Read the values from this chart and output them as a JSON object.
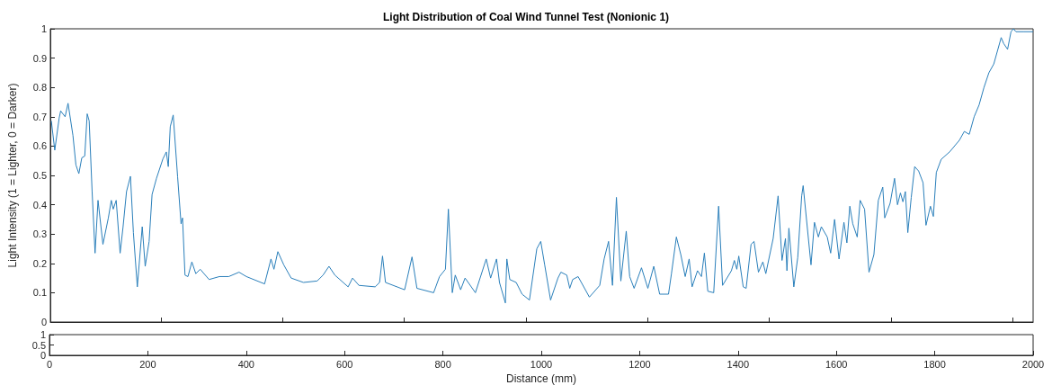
{
  "chart_data": [
    {
      "type": "line",
      "title": "Light Distribution of Coal Wind Tunnel Test (Nonionic 1)",
      "ylabel": "Light Intensity (1 = Lighter, 0 = Darker)",
      "tick_labels": "y",
      "grid": false,
      "xlim": [
        0,
        2000
      ],
      "xticks": [
        {
          "value": 225,
          "label": null
        },
        {
          "value": 473,
          "label": null
        },
        {
          "value": 720,
          "label": null
        },
        {
          "value": 968,
          "label": null
        },
        {
          "value": 1216,
          "label": null
        },
        {
          "value": 1463,
          "label": null
        },
        {
          "value": 1711,
          "label": null
        },
        {
          "value": 1958,
          "label": null
        }
      ],
      "ylim": [
        0,
        1
      ],
      "yticks": [
        0,
        0.1,
        0.2,
        0.3,
        0.4,
        0.5,
        0.6,
        0.7,
        0.8,
        0.9,
        1
      ],
      "series": [
        {
          "color": "#2a7fba",
          "x": [
            2,
            9,
            18,
            21,
            30,
            36,
            46,
            52,
            58,
            64,
            70,
            75,
            79,
            85,
            91,
            97,
            107,
            118,
            124,
            128,
            134,
            142,
            148,
            155,
            163,
            169,
            177,
            187,
            193,
            201,
            207,
            216,
            229,
            236,
            240,
            244,
            250,
            259,
            266,
            269,
            274,
            280,
            288,
            296,
            305,
            323,
            344,
            363,
            384,
            399,
            436,
            449,
            455,
            463,
            475,
            490,
            515,
            543,
            555,
            567,
            579,
            606,
            615,
            628,
            661,
            670,
            676,
            682,
            721,
            736,
            746,
            780,
            792,
            804,
            810,
            818,
            824,
            835,
            844,
            865,
            887,
            896,
            908,
            914,
            926,
            929,
            935,
            948,
            960,
            975,
            990,
            998,
            1006,
            1018,
            1033,
            1039,
            1051,
            1057,
            1063,
            1074,
            1097,
            1118,
            1127,
            1136,
            1144,
            1152,
            1161,
            1172,
            1179,
            1188,
            1203,
            1216,
            1228,
            1240,
            1258,
            1264,
            1274,
            1283,
            1292,
            1300,
            1306,
            1317,
            1325,
            1331,
            1338,
            1350,
            1360,
            1368,
            1386,
            1392,
            1397,
            1401,
            1410,
            1416,
            1426,
            1432,
            1441,
            1450,
            1456,
            1471,
            1481,
            1489,
            1496,
            1499,
            1503,
            1513,
            1521,
            1529,
            1532,
            1548,
            1555,
            1563,
            1569,
            1581,
            1588,
            1596,
            1605,
            1615,
            1621,
            1627,
            1633,
            1642,
            1648,
            1657,
            1666,
            1676,
            1685,
            1694,
            1698,
            1709,
            1718,
            1724,
            1730,
            1735,
            1740,
            1745,
            1752,
            1759,
            1767,
            1776,
            1782,
            1791,
            1797,
            1803,
            1813,
            1830,
            1850,
            1860,
            1870,
            1880,
            1890,
            1900,
            1910,
            1920,
            1935,
            1940,
            1948,
            1955,
            1960,
            1965,
            1980,
            2000
          ],
          "values": [
            0.686,
            0.586,
            0.696,
            0.72,
            0.7,
            0.746,
            0.636,
            0.536,
            0.506,
            0.56,
            0.566,
            0.71,
            0.686,
            0.445,
            0.235,
            0.415,
            0.265,
            0.355,
            0.415,
            0.385,
            0.415,
            0.235,
            0.325,
            0.445,
            0.497,
            0.305,
            0.12,
            0.325,
            0.19,
            0.275,
            0.435,
            0.49,
            0.556,
            0.58,
            0.53,
            0.666,
            0.706,
            0.495,
            0.335,
            0.355,
            0.16,
            0.155,
            0.205,
            0.165,
            0.18,
            0.145,
            0.155,
            0.155,
            0.17,
            0.155,
            0.13,
            0.215,
            0.18,
            0.24,
            0.195,
            0.15,
            0.135,
            0.14,
            0.16,
            0.19,
            0.16,
            0.12,
            0.15,
            0.125,
            0.12,
            0.135,
            0.225,
            0.135,
            0.11,
            0.222,
            0.115,
            0.1,
            0.155,
            0.18,
            0.385,
            0.1,
            0.16,
            0.11,
            0.15,
            0.1,
            0.215,
            0.15,
            0.215,
            0.135,
            0.065,
            0.215,
            0.145,
            0.135,
            0.095,
            0.075,
            0.25,
            0.275,
            0.195,
            0.075,
            0.15,
            0.17,
            0.16,
            0.115,
            0.145,
            0.155,
            0.085,
            0.125,
            0.215,
            0.275,
            0.125,
            0.425,
            0.14,
            0.31,
            0.155,
            0.115,
            0.185,
            0.115,
            0.19,
            0.095,
            0.095,
            0.165,
            0.29,
            0.23,
            0.155,
            0.215,
            0.12,
            0.175,
            0.155,
            0.235,
            0.105,
            0.1,
            0.395,
            0.125,
            0.175,
            0.21,
            0.18,
            0.225,
            0.12,
            0.115,
            0.265,
            0.275,
            0.17,
            0.205,
            0.165,
            0.285,
            0.43,
            0.21,
            0.285,
            0.175,
            0.32,
            0.12,
            0.22,
            0.43,
            0.465,
            0.195,
            0.34,
            0.29,
            0.325,
            0.29,
            0.235,
            0.35,
            0.215,
            0.34,
            0.27,
            0.395,
            0.335,
            0.29,
            0.415,
            0.385,
            0.17,
            0.23,
            0.415,
            0.46,
            0.355,
            0.405,
            0.49,
            0.4,
            0.44,
            0.41,
            0.445,
            0.305,
            0.425,
            0.53,
            0.515,
            0.475,
            0.33,
            0.395,
            0.36,
            0.51,
            0.555,
            0.58,
            0.62,
            0.65,
            0.64,
            0.7,
            0.74,
            0.8,
            0.85,
            0.88,
            0.97,
            0.95,
            0.93,
            0.99,
            1,
            0.99,
            0.99,
            0.99
          ]
        }
      ]
    },
    {
      "type": "line",
      "xlabel": "Distance (mm)",
      "grid": false,
      "xlim": [
        0,
        2000
      ],
      "xticks": [
        0,
        200,
        400,
        600,
        800,
        1000,
        1200,
        1400,
        1600,
        1800,
        2000
      ],
      "ylim": [
        0,
        1
      ],
      "yticks": [
        0,
        {
          "value": 0.5,
          "label": "0.5"
        },
        1
      ]
    }
  ]
}
